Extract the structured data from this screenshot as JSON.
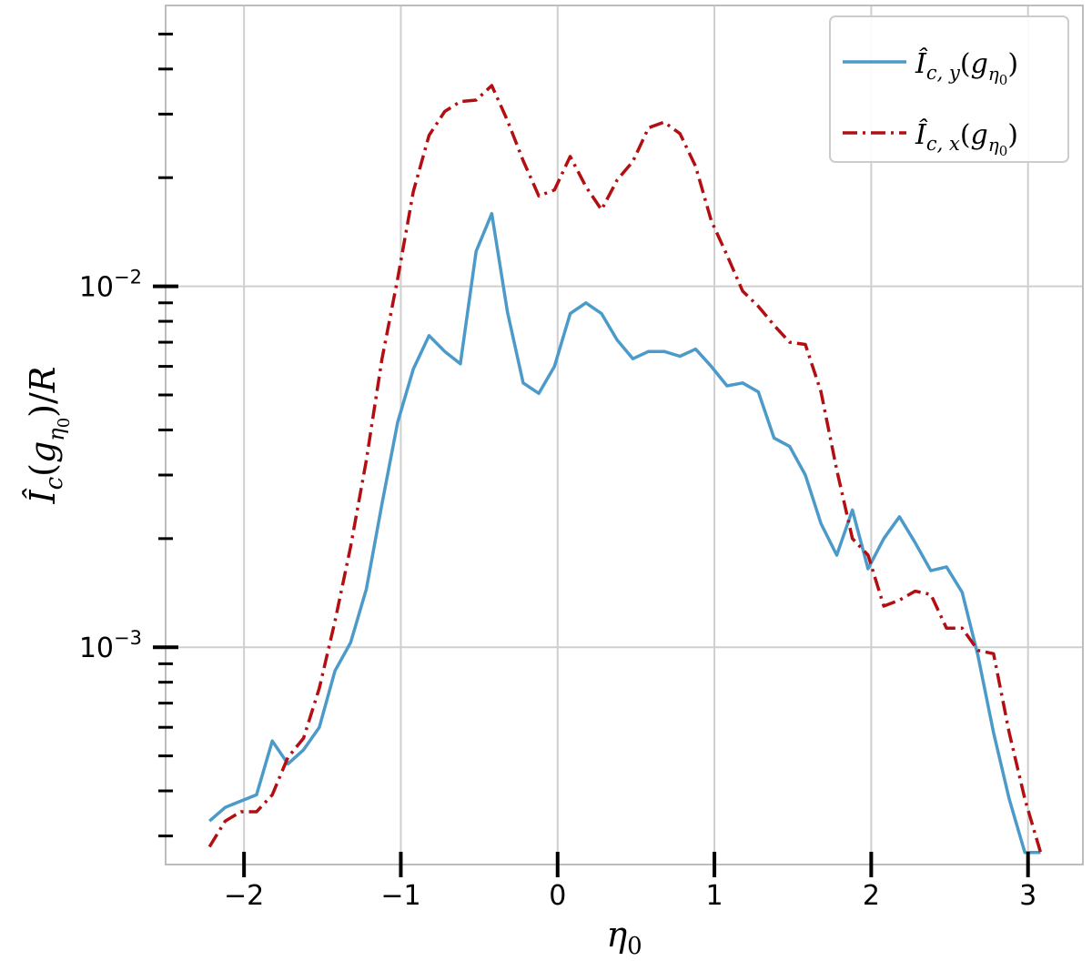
{
  "chart_data": {
    "type": "line",
    "xlabel": "η₀",
    "ylabel": "Î_c(g_η₀)/R",
    "y_scale": "log",
    "xlim": [
      -2.5,
      3.35
    ],
    "ylim": [
      0.00025,
      0.06
    ],
    "grid": true,
    "legend_position": "top-right",
    "x_ticks": [
      {
        "value": -2,
        "label": "−2"
      },
      {
        "value": -1,
        "label": "−1"
      },
      {
        "value": 0,
        "label": "0"
      },
      {
        "value": 1,
        "label": "1"
      },
      {
        "value": 2,
        "label": "2"
      },
      {
        "value": 3,
        "label": "3"
      }
    ],
    "y_ticks": [
      {
        "value": 0.01,
        "base": "10",
        "exp": "−2"
      },
      {
        "value": 0.001,
        "base": "10",
        "exp": "−3"
      }
    ],
    "series": [
      {
        "name": "Î_c,y(g_η₀)",
        "color": "#4b9ac9",
        "style": "solid",
        "x": [
          -2.22,
          -2.12,
          -2.02,
          -1.92,
          -1.82,
          -1.72,
          -1.62,
          -1.52,
          -1.42,
          -1.32,
          -1.22,
          -1.12,
          -1.02,
          -0.92,
          -0.82,
          -0.72,
          -0.62,
          -0.52,
          -0.42,
          -0.32,
          -0.22,
          -0.12,
          -0.02,
          0.08,
          0.18,
          0.28,
          0.38,
          0.48,
          0.58,
          0.68,
          0.78,
          0.88,
          0.98,
          1.08,
          1.18,
          1.28,
          1.38,
          1.48,
          1.58,
          1.68,
          1.78,
          1.88,
          1.98,
          2.08,
          2.18,
          2.28,
          2.38,
          2.48,
          2.58,
          2.68,
          2.78,
          2.88,
          2.98,
          3.08
        ],
        "y": [
          0.00033,
          0.00036,
          0.000375,
          0.00039,
          0.00055,
          0.000475,
          0.00052,
          0.0006,
          0.00086,
          0.00103,
          0.00145,
          0.0025,
          0.0042,
          0.0059,
          0.0073,
          0.0066,
          0.0061,
          0.0125,
          0.0159,
          0.0085,
          0.0054,
          0.00505,
          0.006,
          0.0084,
          0.009,
          0.0084,
          0.0071,
          0.0063,
          0.0066,
          0.0066,
          0.0064,
          0.0067,
          0.006,
          0.0053,
          0.0054,
          0.0051,
          0.0038,
          0.0036,
          0.003,
          0.0022,
          0.0018,
          0.0024,
          0.00165,
          0.002,
          0.0023,
          0.00195,
          0.00163,
          0.00167,
          0.00142,
          0.00095,
          0.00058,
          0.00038,
          0.00027,
          0.00027
        ]
      },
      {
        "name": "Î_c,x(g_η₀)",
        "color": "#b30f12",
        "style": "dashdot",
        "x": [
          -2.22,
          -2.12,
          -2.02,
          -1.92,
          -1.82,
          -1.72,
          -1.62,
          -1.52,
          -1.42,
          -1.32,
          -1.22,
          -1.12,
          -1.02,
          -0.92,
          -0.82,
          -0.72,
          -0.62,
          -0.52,
          -0.42,
          -0.32,
          -0.22,
          -0.12,
          -0.02,
          0.08,
          0.18,
          0.28,
          0.38,
          0.48,
          0.58,
          0.68,
          0.78,
          0.88,
          0.98,
          1.08,
          1.18,
          1.28,
          1.38,
          1.48,
          1.58,
          1.68,
          1.78,
          1.88,
          1.98,
          2.08,
          2.18,
          2.28,
          2.38,
          2.48,
          2.58,
          2.68,
          2.78,
          2.88,
          2.98,
          3.08
        ],
        "y": [
          0.00028,
          0.00033,
          0.00035,
          0.00035,
          0.00039,
          0.000495,
          0.00056,
          0.00077,
          0.00118,
          0.0019,
          0.0033,
          0.0063,
          0.0105,
          0.0183,
          0.0262,
          0.0305,
          0.0325,
          0.0328,
          0.036,
          0.0288,
          0.0223,
          0.0178,
          0.0185,
          0.0229,
          0.0189,
          0.0163,
          0.0197,
          0.0222,
          0.0275,
          0.0285,
          0.0265,
          0.0215,
          0.0152,
          0.0122,
          0.0097,
          0.0088,
          0.0078,
          0.007,
          0.0069,
          0.0051,
          0.0031,
          0.002,
          0.0018,
          0.0013,
          0.00135,
          0.00143,
          0.0014,
          0.00113,
          0.00113,
          0.00098,
          0.00096,
          0.00058,
          0.00038,
          0.00027
        ]
      }
    ]
  }
}
